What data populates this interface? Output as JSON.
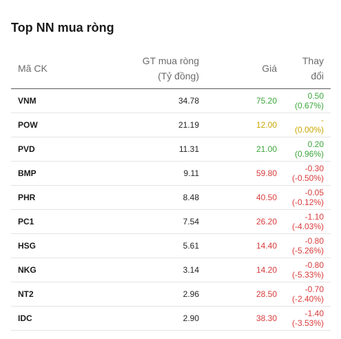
{
  "title": "Top NN mua ròng",
  "colors": {
    "up": "#3aa63a",
    "reference": "#c9a500",
    "down": "#d93a3a"
  },
  "table": {
    "headers": {
      "code": "Mã CK",
      "value_line1": "GT mua ròng",
      "value_line2": "(Tỷ đồng)",
      "price": "Giá",
      "change": "Thay đổi"
    },
    "rows": [
      {
        "code": "VNM",
        "value": "34.78",
        "price": "75.20",
        "change": "0.50 (0.67%)",
        "trend": "up"
      },
      {
        "code": "POW",
        "value": "21.19",
        "price": "12.00",
        "change": "- (0.00%)",
        "trend": "ref"
      },
      {
        "code": "PVD",
        "value": "11.31",
        "price": "21.00",
        "change": "0.20 (0.96%)",
        "trend": "up"
      },
      {
        "code": "BMP",
        "value": "9.11",
        "price": "59.80",
        "change": "-0.30 (-0.50%)",
        "trend": "down"
      },
      {
        "code": "PHR",
        "value": "8.48",
        "price": "40.50",
        "change": "-0.05 (-0.12%)",
        "trend": "down"
      },
      {
        "code": "PC1",
        "value": "7.54",
        "price": "26.20",
        "change": "-1.10 (-4.03%)",
        "trend": "down"
      },
      {
        "code": "HSG",
        "value": "5.61",
        "price": "14.40",
        "change": "-0.80 (-5.26%)",
        "trend": "down"
      },
      {
        "code": "NKG",
        "value": "3.14",
        "price": "14.20",
        "change": "-0.80 (-5.33%)",
        "trend": "down"
      },
      {
        "code": "NT2",
        "value": "2.96",
        "price": "28.50",
        "change": "-0.70 (-2.40%)",
        "trend": "down"
      },
      {
        "code": "IDC",
        "value": "2.90",
        "price": "38.30",
        "change": "-1.40 (-3.53%)",
        "trend": "down"
      }
    ]
  }
}
